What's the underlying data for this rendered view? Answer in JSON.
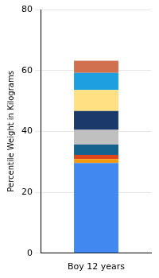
{
  "chart_data": {
    "type": "bar",
    "stacked": true,
    "categories": [
      "Boy 12 years"
    ],
    "y_label": "Percentile Weight in Kilograms",
    "series": [
      {
        "color": "#4189f0",
        "values": [
          29.6
        ]
      },
      {
        "color": "#f39c12",
        "values": [
          1.3
        ]
      },
      {
        "color": "#e0441b",
        "values": [
          1.4
        ]
      },
      {
        "color": "#16628f",
        "values": [
          3.4
        ]
      },
      {
        "color": "#c0c0c0",
        "values": [
          4.8
        ]
      },
      {
        "color": "#1b3a6b",
        "values": [
          6.2
        ]
      },
      {
        "color": "#ffe082",
        "values": [
          6.9
        ]
      },
      {
        "color": "#1e9fe0",
        "values": [
          5.6
        ]
      },
      {
        "color": "#d0704f",
        "values": [
          4.0
        ]
      }
    ],
    "ylim": [
      0,
      80
    ],
    "yticks": [
      0,
      20,
      40,
      60,
      80
    ],
    "grid": true
  }
}
